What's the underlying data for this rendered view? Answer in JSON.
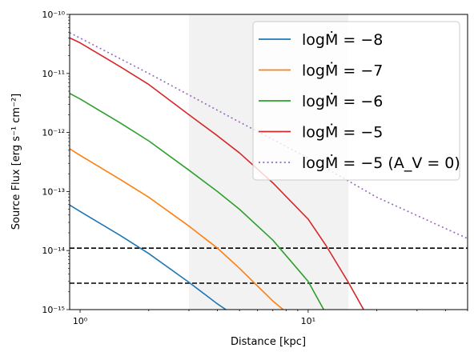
{
  "chart_data": {
    "type": "line",
    "title": "",
    "xlabel": "Distance [kpc]",
    "ylabel": "Source Flux [erg s⁻¹ cm⁻²]",
    "xscale": "log",
    "yscale": "log",
    "xlim": [
      0.9,
      50
    ],
    "ylim": [
      1e-15,
      1e-10
    ],
    "x_ticks": [
      {
        "value": 1,
        "label": "10⁰"
      },
      {
        "value": 10,
        "label": "10¹"
      }
    ],
    "y_ticks": [
      {
        "value": 1e-15,
        "label": "10⁻¹⁵"
      },
      {
        "value": 1e-14,
        "label": "10⁻¹⁴"
      },
      {
        "value": 1e-13,
        "label": "10⁻¹³"
      },
      {
        "value": 1e-12,
        "label": "10⁻¹²"
      },
      {
        "value": 1e-11,
        "label": "10⁻¹¹"
      },
      {
        "value": 1e-10,
        "label": "10⁻¹⁰"
      }
    ],
    "grid": false,
    "legend_position": "top-right",
    "shaded_region": {
      "x": [
        3,
        15
      ],
      "color": "#f2f2f2"
    },
    "threshold_lines": [
      {
        "y": 1.1e-14,
        "color": "#000000",
        "style": "dashed"
      },
      {
        "y": 2.8e-15,
        "color": "#000000",
        "style": "dashed"
      }
    ],
    "series": [
      {
        "name": "logṀ = −8",
        "color": "#1f77b4",
        "style": "solid",
        "points": [
          [
            0.9,
            5.9e-14
          ],
          [
            1.0,
            4.6e-14
          ],
          [
            1.5,
            1.8e-14
          ],
          [
            2.0,
            8.9e-15
          ],
          [
            3.0,
            2.9e-15
          ],
          [
            4.0,
            1.25e-15
          ],
          [
            4.36,
            1e-15
          ]
        ]
      },
      {
        "name": "logṀ = −7",
        "color": "#ff7f0e",
        "style": "solid",
        "points": [
          [
            0.9,
            5.3e-13
          ],
          [
            1.0,
            4.1e-13
          ],
          [
            1.5,
            1.6e-13
          ],
          [
            2.0,
            8e-14
          ],
          [
            3.0,
            2.6e-14
          ],
          [
            4.0,
            1.1e-14
          ],
          [
            5.0,
            5e-15
          ],
          [
            6.0,
            2.5e-15
          ],
          [
            7.0,
            1.4e-15
          ],
          [
            7.77,
            1e-15
          ]
        ]
      },
      {
        "name": "logṀ = −6",
        "color": "#2ca02c",
        "style": "solid",
        "points": [
          [
            0.9,
            4.6e-12
          ],
          [
            1.0,
            3.7e-12
          ],
          [
            1.5,
            1.45e-12
          ],
          [
            2.0,
            7.2e-13
          ],
          [
            3.0,
            2.3e-13
          ],
          [
            4.0,
            1e-13
          ],
          [
            5.0,
            5e-14
          ],
          [
            7.0,
            1.5e-14
          ],
          [
            10.0,
            3e-15
          ],
          [
            11.7,
            1e-15
          ]
        ]
      },
      {
        "name": "logṀ = −5",
        "color": "#d62728",
        "style": "solid",
        "points": [
          [
            0.9,
            4e-11
          ],
          [
            1.0,
            3.3e-11
          ],
          [
            1.5,
            1.3e-11
          ],
          [
            2.0,
            6.5e-12
          ],
          [
            3.0,
            2e-12
          ],
          [
            4.0,
            8.8e-13
          ],
          [
            5.0,
            4.5e-13
          ],
          [
            7.0,
            1.4e-13
          ],
          [
            10.0,
            3.4e-14
          ],
          [
            12.0,
            1.2e-14
          ],
          [
            15.0,
            2.9e-15
          ],
          [
            17.5,
            1e-15
          ]
        ]
      },
      {
        "name": "logṀ = −5 (A_V = 0)",
        "color": "#9467bd",
        "style": "dotted",
        "points": [
          [
            0.9,
            4.9e-11
          ],
          [
            2.0,
            1e-11
          ],
          [
            5.0,
            1.5e-12
          ],
          [
            10.0,
            3.7e-13
          ],
          [
            20.0,
            8e-14
          ],
          [
            50.0,
            1.6e-14
          ]
        ]
      }
    ]
  }
}
